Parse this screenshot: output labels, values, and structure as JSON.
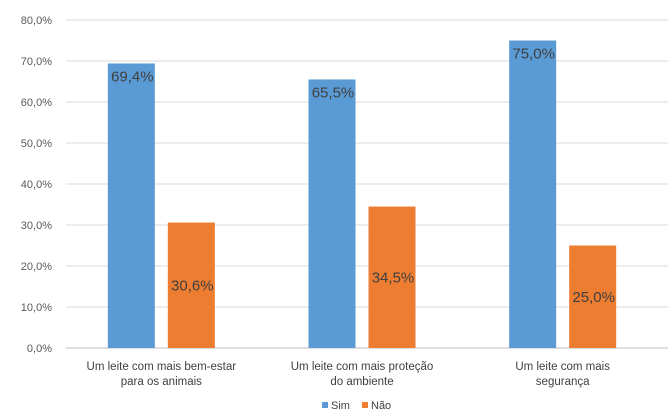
{
  "chart_data": {
    "type": "bar",
    "categories": [
      [
        "Um leite com mais bem-estar",
        "para os animais"
      ],
      [
        "Um leite com mais proteção",
        "do ambiente"
      ],
      [
        "Um leite com mais",
        "segurança"
      ]
    ],
    "series": [
      {
        "name": "Sim",
        "color": "#5b9bd5",
        "values": [
          69.4,
          65.5,
          75.0
        ],
        "labels": [
          "69,4%",
          "65,5%",
          "75,0%"
        ]
      },
      {
        "name": "Não",
        "color": "#ed7d31",
        "values": [
          30.6,
          34.5,
          25.0
        ],
        "labels": [
          "30,6%",
          "34,5%",
          "25,0%"
        ]
      }
    ],
    "ylim": [
      0,
      80
    ],
    "yticks": [
      {
        "value": 0,
        "label": "0,0%"
      },
      {
        "value": 10,
        "label": "10,0%"
      },
      {
        "value": 20,
        "label": "20,0%"
      },
      {
        "value": 30,
        "label": "30,0%"
      },
      {
        "value": 40,
        "label": "40,0%"
      },
      {
        "value": 50,
        "label": "50,0%"
      },
      {
        "value": 60,
        "label": "60,0%"
      },
      {
        "value": 70,
        "label": "70,0%"
      },
      {
        "value": 80,
        "label": "80,0%"
      }
    ],
    "grid": true,
    "legend_position": "bottom"
  }
}
